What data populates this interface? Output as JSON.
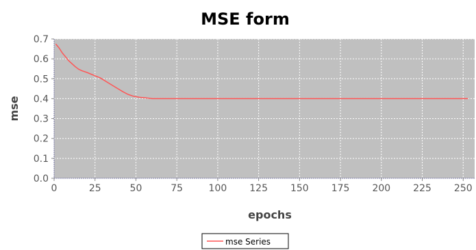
{
  "chart_data": {
    "type": "line",
    "title": "MSE form",
    "xlabel": "epochs",
    "ylabel": "mse",
    "xlim": [
      0,
      257
    ],
    "ylim": [
      0,
      0.7
    ],
    "x_ticks": [
      0,
      25,
      50,
      75,
      100,
      125,
      150,
      175,
      200,
      225,
      250
    ],
    "y_ticks": [
      0.0,
      0.1,
      0.2,
      0.3,
      0.4,
      0.5,
      0.6,
      0.7
    ],
    "y_tick_labels": [
      "0.0",
      "0.1",
      "0.2",
      "0.3",
      "0.4",
      "0.5",
      "0.6",
      "0.7"
    ],
    "grid": true,
    "legend_position": "bottom-center",
    "plot_background": "#c0c0c0",
    "series": [
      {
        "name": "mse Series",
        "color": "#ff5555",
        "points": [
          [
            1,
            0.675
          ],
          [
            3,
            0.655
          ],
          [
            5,
            0.63
          ],
          [
            7,
            0.61
          ],
          [
            9,
            0.59
          ],
          [
            11,
            0.575
          ],
          [
            13,
            0.56
          ],
          [
            15,
            0.548
          ],
          [
            17,
            0.54
          ],
          [
            20,
            0.532
          ],
          [
            22,
            0.525
          ],
          [
            25,
            0.515
          ],
          [
            28,
            0.505
          ],
          [
            30,
            0.495
          ],
          [
            33,
            0.48
          ],
          [
            36,
            0.465
          ],
          [
            39,
            0.45
          ],
          [
            42,
            0.435
          ],
          [
            45,
            0.422
          ],
          [
            48,
            0.413
          ],
          [
            52,
            0.407
          ],
          [
            56,
            0.404
          ],
          [
            60,
            0.4
          ],
          [
            100,
            0.4
          ],
          [
            150,
            0.4
          ],
          [
            200,
            0.4
          ],
          [
            253,
            0.4
          ]
        ]
      }
    ]
  }
}
